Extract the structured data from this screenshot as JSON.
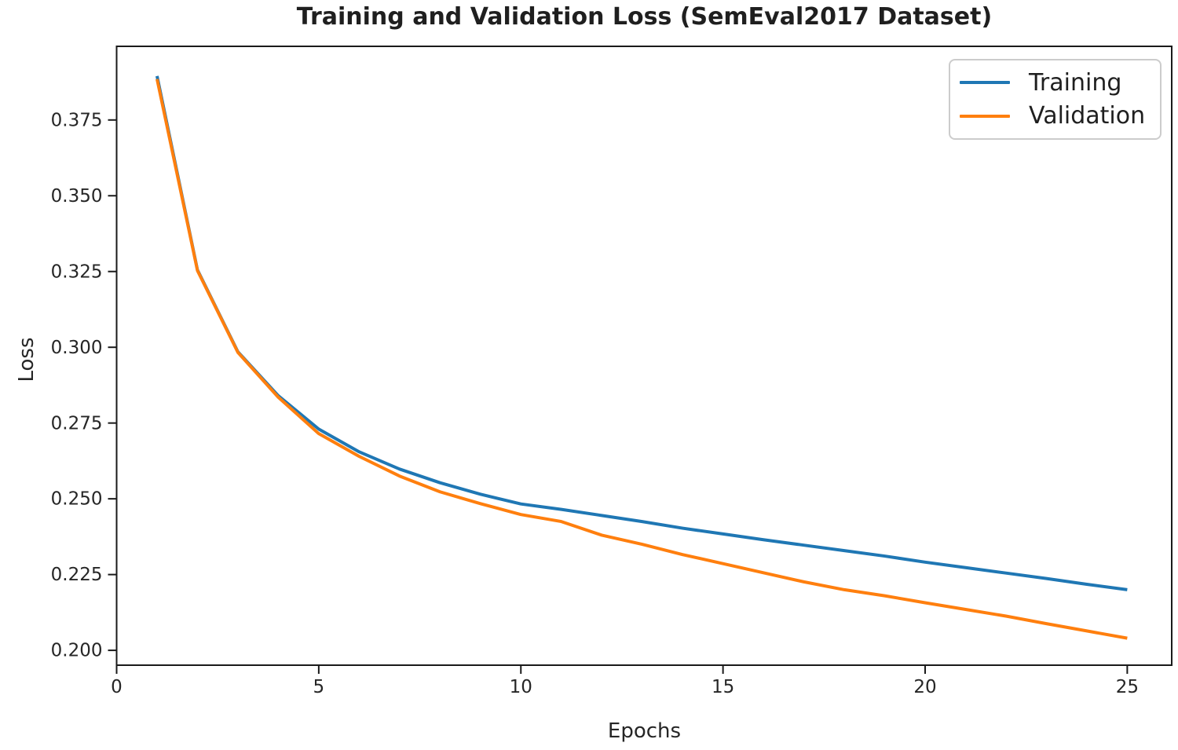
{
  "figure": {
    "title": "Training and Validation Loss (SemEval2017 Dataset)",
    "x_axis_label": "Epochs",
    "y_axis_label": "Loss"
  },
  "legend": {
    "items": [
      {
        "label": "Training",
        "color": "#1f77b4"
      },
      {
        "label": "Validation",
        "color": "#ff7f0e"
      }
    ]
  },
  "colors": {
    "training_line": "#1f77b4",
    "validation_line": "#ff7f0e",
    "spine": "#1a1a1a",
    "tick_text": "#262626",
    "legend_border": "#cccccc",
    "background": "#ffffff"
  },
  "chart_data": {
    "type": "line",
    "title": "Training and Validation Loss (SemEval2017 Dataset)",
    "xlabel": "Epochs",
    "ylabel": "Loss",
    "grid": false,
    "legend_position": "upper right",
    "xlim": [
      0,
      26.1
    ],
    "ylim": [
      0.1951,
      0.3993
    ],
    "x": [
      1,
      2,
      3,
      4,
      5,
      6,
      7,
      8,
      9,
      10,
      11,
      12,
      13,
      14,
      15,
      16,
      17,
      18,
      19,
      20,
      21,
      22,
      23,
      24,
      25
    ],
    "series": [
      {
        "name": "Training",
        "color": "#1f77b4",
        "values": [
          0.3895,
          0.3255,
          0.2985,
          0.284,
          0.273,
          0.2655,
          0.2598,
          0.2553,
          0.2515,
          0.2483,
          0.2465,
          0.2445,
          0.2425,
          0.2403,
          0.2384,
          0.2365,
          0.2347,
          0.2329,
          0.2311,
          0.2291,
          0.2273,
          0.2255,
          0.2237,
          0.2218,
          0.22
        ]
      },
      {
        "name": "Validation",
        "color": "#ff7f0e",
        "values": [
          0.3885,
          0.3253,
          0.2983,
          0.2835,
          0.2715,
          0.264,
          0.2575,
          0.2523,
          0.2484,
          0.2448,
          0.2425,
          0.238,
          0.235,
          0.2316,
          0.2286,
          0.2256,
          0.2226,
          0.22,
          0.218,
          0.2157,
          0.2135,
          0.2113,
          0.2088,
          0.2064,
          0.204
        ]
      }
    ],
    "xticks": {
      "values": [
        0,
        5,
        10,
        15,
        20,
        25
      ],
      "labels": [
        "0",
        "5",
        "10",
        "15",
        "20",
        "25"
      ]
    },
    "yticks": {
      "values": [
        0.2,
        0.225,
        0.25,
        0.275,
        0.3,
        0.325,
        0.35,
        0.375
      ],
      "labels": [
        "0.200",
        "0.225",
        "0.250",
        "0.275",
        "0.300",
        "0.325",
        "0.350",
        "0.375"
      ]
    }
  }
}
